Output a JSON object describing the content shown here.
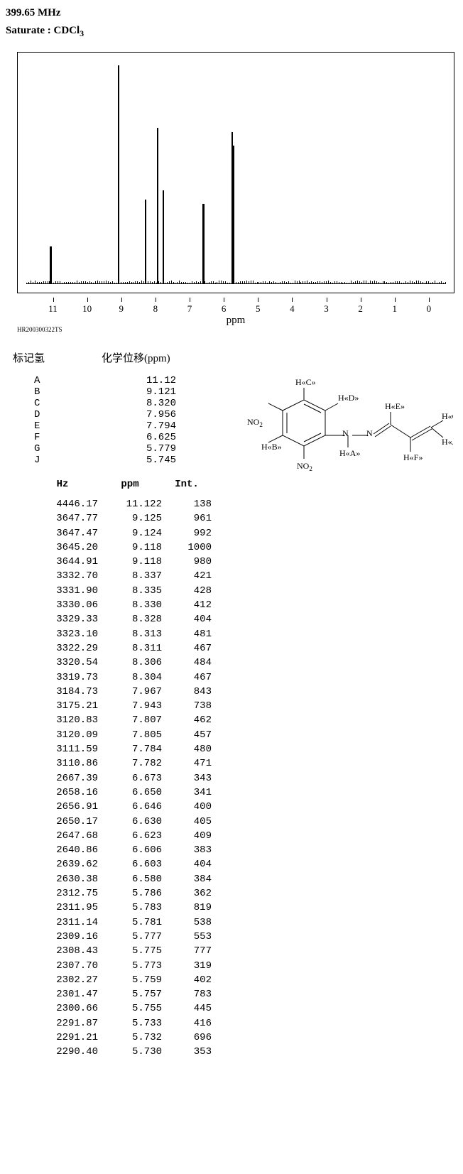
{
  "header": {
    "freq": "399.65 MHz",
    "saturate_label": "Saturate : CDCl",
    "saturate_sub": "3"
  },
  "spectrum": {
    "id": "HR200300322TS",
    "axis_title": "ppm",
    "xlim": [
      -0.5,
      11.8
    ],
    "ticks": [
      11,
      10,
      9,
      8,
      7,
      6,
      5,
      4,
      3,
      2,
      1,
      0
    ],
    "peaks": [
      {
        "ppm": 11.12,
        "h": 0.17,
        "w": 3
      },
      {
        "ppm": 9.12,
        "h": 0.98,
        "w": 2
      },
      {
        "ppm": 8.32,
        "h": 0.38,
        "w": 2
      },
      {
        "ppm": 7.96,
        "h": 0.7,
        "w": 2
      },
      {
        "ppm": 7.79,
        "h": 0.42,
        "w": 2
      },
      {
        "ppm": 6.63,
        "h": 0.36,
        "w": 3
      },
      {
        "ppm": 6.6,
        "h": 0.3,
        "w": 2
      },
      {
        "ppm": 5.78,
        "h": 0.68,
        "w": 2
      },
      {
        "ppm": 5.74,
        "h": 0.62,
        "w": 2
      }
    ],
    "plot_bg": "#ffffff",
    "line_color": "#000000"
  },
  "assign": {
    "col1": "标记氢",
    "col2": "化学位移(ppm)",
    "rows": [
      {
        "label": "A",
        "ppm": "11.12"
      },
      {
        "label": "B",
        "ppm": "9.121"
      },
      {
        "label": "C",
        "ppm": "8.320"
      },
      {
        "label": "D",
        "ppm": "7.956"
      },
      {
        "label": "E",
        "ppm": "7.794"
      },
      {
        "label": "F",
        "ppm": "6.625"
      },
      {
        "label": "G",
        "ppm": "5.779"
      },
      {
        "label": "J",
        "ppm": "5.745"
      }
    ]
  },
  "structure": {
    "labels": {
      "hc": "H«C»",
      "hd": "H«D»",
      "he": "H«E»",
      "hg": "H«G»",
      "hb": "H«B»",
      "ha": "H«A»",
      "hf": "H«F»",
      "hj": "H«J»",
      "no2_left": "NO",
      "no2_bottom": "NO",
      "sub2": "2"
    },
    "stroke": "#000000",
    "stroke_width": 1
  },
  "peaklist": {
    "headers": {
      "hz": "Hz",
      "ppm": "ppm",
      "int": "Int."
    },
    "rows": [
      {
        "hz": "4446.17",
        "ppm": "11.122",
        "int": "138"
      },
      {
        "hz": "3647.77",
        "ppm": "9.125",
        "int": "961"
      },
      {
        "hz": "3647.47",
        "ppm": "9.124",
        "int": "992"
      },
      {
        "hz": "3645.20",
        "ppm": "9.118",
        "int": "1000"
      },
      {
        "hz": "3644.91",
        "ppm": "9.118",
        "int": "980"
      },
      {
        "hz": "3332.70",
        "ppm": "8.337",
        "int": "421"
      },
      {
        "hz": "3331.90",
        "ppm": "8.335",
        "int": "428"
      },
      {
        "hz": "3330.06",
        "ppm": "8.330",
        "int": "412"
      },
      {
        "hz": "3329.33",
        "ppm": "8.328",
        "int": "404"
      },
      {
        "hz": "3323.10",
        "ppm": "8.313",
        "int": "481"
      },
      {
        "hz": "3322.29",
        "ppm": "8.311",
        "int": "467"
      },
      {
        "hz": "3320.54",
        "ppm": "8.306",
        "int": "484"
      },
      {
        "hz": "3319.73",
        "ppm": "8.304",
        "int": "467"
      },
      {
        "hz": "3184.73",
        "ppm": "7.967",
        "int": "843"
      },
      {
        "hz": "3175.21",
        "ppm": "7.943",
        "int": "738"
      },
      {
        "hz": "3120.83",
        "ppm": "7.807",
        "int": "462"
      },
      {
        "hz": "3120.09",
        "ppm": "7.805",
        "int": "457"
      },
      {
        "hz": "3111.59",
        "ppm": "7.784",
        "int": "480"
      },
      {
        "hz": "3110.86",
        "ppm": "7.782",
        "int": "471"
      },
      {
        "hz": "2667.39",
        "ppm": "6.673",
        "int": "343"
      },
      {
        "hz": "2658.16",
        "ppm": "6.650",
        "int": "341"
      },
      {
        "hz": "2656.91",
        "ppm": "6.646",
        "int": "400"
      },
      {
        "hz": "2650.17",
        "ppm": "6.630",
        "int": "405"
      },
      {
        "hz": "2647.68",
        "ppm": "6.623",
        "int": "409"
      },
      {
        "hz": "2640.86",
        "ppm": "6.606",
        "int": "383"
      },
      {
        "hz": "2639.62",
        "ppm": "6.603",
        "int": "404"
      },
      {
        "hz": "2630.38",
        "ppm": "6.580",
        "int": "384"
      },
      {
        "hz": "2312.75",
        "ppm": "5.786",
        "int": "362"
      },
      {
        "hz": "2311.95",
        "ppm": "5.783",
        "int": "819"
      },
      {
        "hz": "2311.14",
        "ppm": "5.781",
        "int": "538"
      },
      {
        "hz": "2309.16",
        "ppm": "5.777",
        "int": "553"
      },
      {
        "hz": "2308.43",
        "ppm": "5.775",
        "int": "777"
      },
      {
        "hz": "2307.70",
        "ppm": "5.773",
        "int": "319"
      },
      {
        "hz": "2302.27",
        "ppm": "5.759",
        "int": "402"
      },
      {
        "hz": "2301.47",
        "ppm": "5.757",
        "int": "783"
      },
      {
        "hz": "2300.66",
        "ppm": "5.755",
        "int": "445"
      },
      {
        "hz": "2291.87",
        "ppm": "5.733",
        "int": "416"
      },
      {
        "hz": "2291.21",
        "ppm": "5.732",
        "int": "696"
      },
      {
        "hz": "2290.40",
        "ppm": "5.730",
        "int": "353"
      }
    ]
  }
}
